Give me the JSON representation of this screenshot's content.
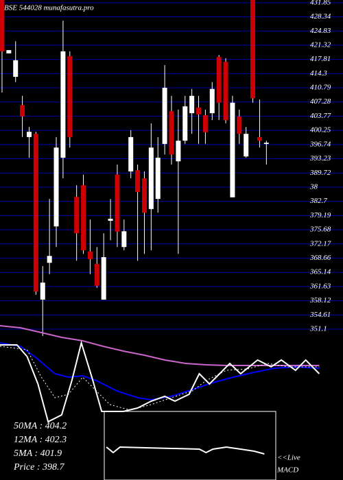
{
  "chart_data": [
    {
      "type": "candlestick",
      "title": "BSE 544028 munafasutra.pro",
      "ylim": [
        349.4,
        432.5
      ],
      "xlim": [
        -0.3,
        50.3
      ],
      "yticks": [
        431.85,
        428.34,
        424.83,
        421.32,
        417.81,
        414.3,
        410.79,
        407.28,
        403.77,
        400.25,
        396.74,
        393.23,
        389.72,
        {
          "value": 386.21,
          "label": "38"
        },
        382.7,
        379.19,
        375.68,
        372.17,
        368.66,
        365.14,
        361.63,
        358.12,
        354.61,
        351.1
      ],
      "grid": true,
      "grid_color": "#0000aa",
      "up_color": "#ffffff",
      "down_color": "#cc0000",
      "open": [
        432.5,
        419.3,
        413.5,
        406.5,
        398.6,
        399.4,
        358.4,
        367.5,
        376.5,
        393.5,
        418.6,
        383.8,
        386.7,
        370.3,
        367.2,
        358.4,
        377.9,
        389.3,
        371.4,
        390.1,
        390.4,
        388.4,
        380.8,
        383.3,
        396.9,
        405.0,
        392.6,
        397.7,
        404.5,
        405.9,
        404.0,
        404.5,
        418.4,
        417.2,
        383.7,
        403.7,
        393.8,
        432.5,
        398.6,
        396.9
      ],
      "close": [
        419.8,
        420.1,
        417.6,
        403.7,
        399.9,
        360.4,
        362.6,
        369.2,
        396.0,
        419.8,
        398.6,
        374.8,
        370.6,
        368.4,
        361.8,
        368.9,
        378.4,
        375.2,
        375.3,
        398.6,
        385.0,
        379.9,
        396.0,
        393.5,
        410.8,
        394.3,
        397.7,
        406.2,
        408.8,
        404.2,
        399.8,
        410.5,
        407.1,
        402.8,
        407.1,
        399.4,
        399.4,
        408.2,
        397.7,
        397.2
      ],
      "high": [
        432.5,
        420.1,
        422.3,
        408.8,
        401.1,
        399.9,
        366.7,
        383.3,
        398.6,
        427.4,
        419.8,
        386.7,
        389.3,
        378.2,
        371.4,
        374.8,
        383.3,
        391.8,
        378.2,
        400.3,
        391.8,
        390.1,
        402.0,
        398.6,
        416.4,
        408.8,
        405.4,
        408.8,
        410.5,
        408.8,
        405.4,
        412.2,
        418.9,
        418.1,
        408.8,
        405.4,
        401.1,
        432.5,
        407.9,
        397.7
      ],
      "low": [
        409.6,
        419.3,
        412.2,
        398.6,
        393.5,
        359.6,
        349.4,
        364.7,
        371.4,
        388.4,
        396.0,
        368.0,
        369.7,
        364.7,
        361.3,
        358.4,
        373.1,
        371.4,
        370.6,
        388.4,
        368.0,
        369.7,
        370.6,
        379.9,
        394.3,
        391.8,
        369.7,
        396.9,
        399.4,
        396.9,
        396.9,
        402.8,
        402.8,
        402.0,
        383.7,
        396.9,
        393.5,
        407.1,
        396.0,
        391.8
      ]
    },
    {
      "type": "line",
      "ylim": [
        0,
        225
      ],
      "xlim": [
        -0.3,
        50.3
      ],
      "labels": [
        "50MA : 404.2",
        "12MA : 402.3",
        "5MA : 401.9",
        "Price  : 398.7"
      ],
      "series": [
        {
          "color": "#cc66cc",
          "style": "solid",
          "x": [
            -0.3,
            2.7,
            5.8,
            8.8,
            11.9,
            14.9,
            17.9,
            21.0,
            24.0,
            27.1,
            30.1,
            33.1,
            36.2,
            39.2,
            42.2,
            46.8
          ],
          "values": [
            225,
            222,
            215,
            208,
            203,
            195,
            188,
            182,
            175,
            170,
            168,
            167,
            167,
            167,
            167,
            167
          ]
        },
        {
          "color": "#0000ff",
          "style": "solid",
          "x": [
            -0.3,
            2.7,
            4.8,
            7.8,
            9.8,
            11.9,
            13.9,
            16.9,
            20.0,
            22.0,
            25.0,
            28.1,
            31.1,
            34.1,
            37.2,
            40.2,
            43.3,
            46.8
          ],
          "values": [
            200,
            195,
            180,
            155,
            150,
            152,
            145,
            130,
            120,
            117,
            122,
            132,
            142,
            150,
            157,
            163,
            165,
            163
          ]
        },
        {
          "color": "#ffffff",
          "style": "solid",
          "x": [
            -0.3,
            2.2,
            3.7,
            5.3,
            6.8,
            8.8,
            10.3,
            11.7,
            13.4,
            14.7,
            17.9,
            20.0,
            22.0,
            24.0,
            25.5,
            27.6,
            29.1,
            30.6,
            32.1,
            33.6,
            35.2,
            37.7,
            39.7,
            41.2,
            43.3,
            44.8,
            46.8
          ],
          "values": [
            197,
            197,
            180,
            140,
            85,
            95,
            145,
            200,
            145,
            100,
            100,
            105,
            115,
            122,
            115,
            125,
            155,
            140,
            155,
            170,
            155,
            175,
            165,
            175,
            160,
            175,
            155
          ]
        },
        {
          "color": "#ffffff",
          "style": "dotted",
          "x": [
            -0.3,
            3.7,
            5.8,
            7.8,
            9.8,
            11.9,
            13.9,
            15.9,
            18.9,
            22.0,
            25.0,
            28.1,
            30.1,
            33.1,
            36.2,
            39.2,
            42.2,
            46.8
          ],
          "values": [
            195,
            190,
            150,
            120,
            125,
            150,
            130,
            110,
            102,
            110,
            120,
            130,
            145,
            160,
            162,
            170,
            165,
            165
          ]
        }
      ]
    },
    {
      "type": "line",
      "ylim": [
        0,
        100
      ],
      "xlim": [
        -0.3,
        50.3
      ],
      "annotations": [
        "<<Live",
        "MACD"
      ],
      "series": [
        {
          "color": "#ffffff",
          "style": "solid",
          "x": [
            15.4,
            16.4,
            17.4,
            29.1,
            30.1,
            31.1,
            33.1,
            35.2,
            37.2,
            38.7
          ],
          "values": [
            48,
            40,
            48,
            45,
            40,
            45,
            48,
            45,
            42,
            38
          ]
        }
      ]
    }
  ]
}
